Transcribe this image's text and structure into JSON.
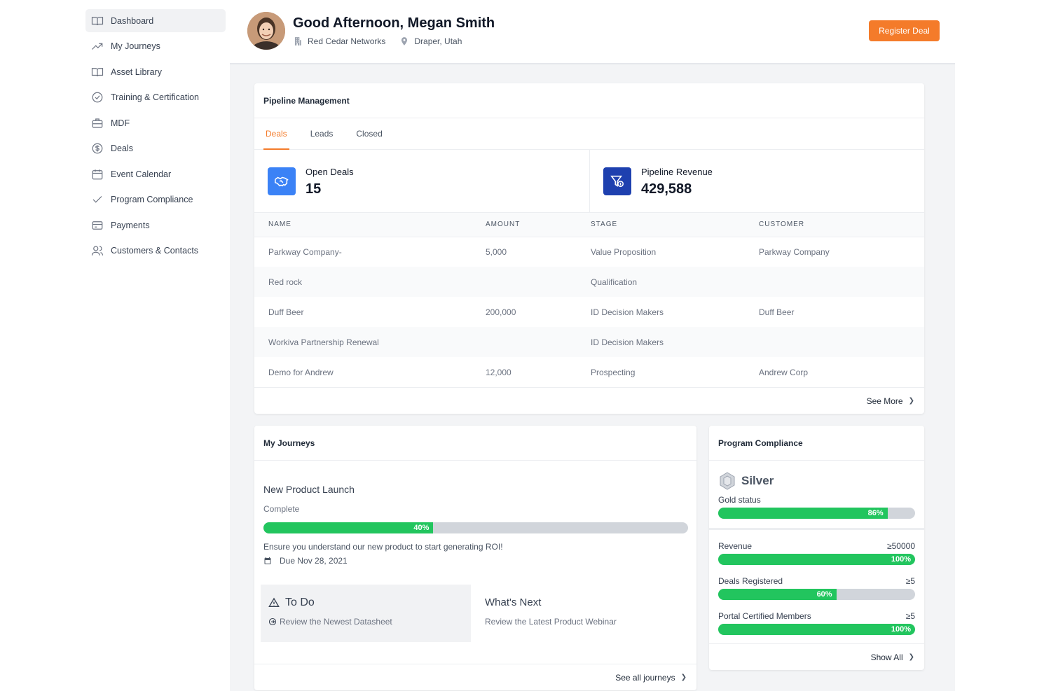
{
  "sidebar": {
    "items": [
      {
        "label": "Dashboard",
        "icon": "book-open-icon"
      },
      {
        "label": "My Journeys",
        "icon": "trending-up-icon"
      },
      {
        "label": "Asset Library",
        "icon": "book-icon"
      },
      {
        "label": "Training & Certification",
        "icon": "check-circle-icon"
      },
      {
        "label": "MDF",
        "icon": "briefcase-icon"
      },
      {
        "label": "Deals",
        "icon": "dollar-circle-icon"
      },
      {
        "label": "Event Calendar",
        "icon": "calendar-icon"
      },
      {
        "label": "Program Compliance",
        "icon": "check-icon"
      },
      {
        "label": "Payments",
        "icon": "credit-card-icon"
      },
      {
        "label": "Customers & Contacts",
        "icon": "users-icon"
      }
    ]
  },
  "header": {
    "greeting": "Good Afternoon, Megan Smith",
    "company": "Red Cedar Networks",
    "location": "Draper, Utah",
    "register_label": "Register Deal"
  },
  "colors": {
    "accent": "#f47b2a",
    "success": "#22c55e",
    "blue": "#3b82f6",
    "navy": "#1e3a8a"
  },
  "pipeline": {
    "title": "Pipeline Management",
    "tabs": [
      "Deals",
      "Leads",
      "Closed"
    ],
    "stats": [
      {
        "label": "Open Deals",
        "value": "15",
        "icon": "handshake-icon"
      },
      {
        "label": "Pipeline Revenue",
        "value": "429,588",
        "icon": "funnel-dollar-icon"
      }
    ],
    "columns": [
      "NAME",
      "AMOUNT",
      "STAGE",
      "CUSTOMER"
    ],
    "rows": [
      [
        "Parkway Company-",
        "5,000",
        "Value Proposition",
        "Parkway Company"
      ],
      [
        "Red rock",
        "",
        "Qualification",
        ""
      ],
      [
        "Duff Beer",
        "200,000",
        "ID Decision Makers",
        "Duff Beer"
      ],
      [
        "Workiva Partnership Renewal",
        "",
        "ID Decision Makers",
        ""
      ],
      [
        "Demo for Andrew",
        "12,000",
        "Prospecting",
        "Andrew Corp"
      ]
    ],
    "see_more": "See More"
  },
  "journeys": {
    "title": "My Journeys",
    "journey_name": "New Product Launch",
    "status": "Complete",
    "progress": 40,
    "progress_label": "40%",
    "description": "Ensure you understand our new product to start generating ROI!",
    "due": "Due Nov 28, 2021",
    "todo_title": "To Do",
    "todo_item": "Review the Newest Datasheet",
    "next_title": "What's Next",
    "next_item": "Review the Latest Product Webinar",
    "see_all": "See all journeys"
  },
  "compliance": {
    "title": "Program Compliance",
    "tier": "Silver",
    "gold_label": "Gold status",
    "gold_progress": 86,
    "gold_progress_label": "86%",
    "metrics": [
      {
        "label": "Revenue",
        "requirement": "≥50000",
        "progress": 100,
        "progress_label": "100%"
      },
      {
        "label": "Deals Registered",
        "requirement": "≥5",
        "progress": 60,
        "progress_label": "60%"
      },
      {
        "label": "Portal Certified Members",
        "requirement": "≥5",
        "progress": 100,
        "progress_label": "100%"
      }
    ],
    "show_all": "Show All"
  }
}
